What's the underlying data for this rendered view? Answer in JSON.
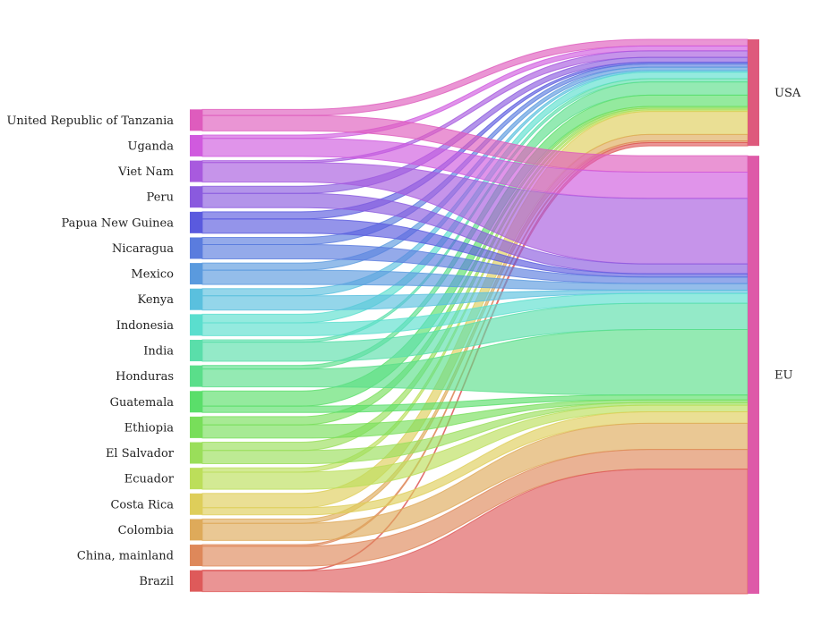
{
  "chart_data": {
    "type": "sankey",
    "title": "",
    "unit": "",
    "sources": [
      {
        "name": "United Republic of Tanzania",
        "color": "#de5cbd"
      },
      {
        "name": "Uganda",
        "color": "#d05ade"
      },
      {
        "name": "Viet Nam",
        "color": "#a85ade"
      },
      {
        "name": "Peru",
        "color": "#8a5ade"
      },
      {
        "name": "Papua New Guinea",
        "color": "#5a5ade"
      },
      {
        "name": "Nicaragua",
        "color": "#5a7cde"
      },
      {
        "name": "Mexico",
        "color": "#5a9ade"
      },
      {
        "name": "Kenya",
        "color": "#5ac0de"
      },
      {
        "name": "Indonesia",
        "color": "#5adece"
      },
      {
        "name": "India",
        "color": "#5adeaa"
      },
      {
        "name": "Honduras",
        "color": "#5ade8a"
      },
      {
        "name": "Guatemala",
        "color": "#5ade6a"
      },
      {
        "name": "Ethiopia",
        "color": "#78de5a"
      },
      {
        "name": "El Salvador",
        "color": "#9ade5a"
      },
      {
        "name": "Ecuador",
        "color": "#bcde5a"
      },
      {
        "name": "Costa Rica",
        "color": "#dece5a"
      },
      {
        "name": "Colombia",
        "color": "#deaa5a"
      },
      {
        "name": "China, mainland",
        "color": "#de885a"
      },
      {
        "name": "Brazil",
        "color": "#de5a5a"
      }
    ],
    "targets": [
      {
        "name": "USA",
        "color": "#de5a7c"
      },
      {
        "name": "EU",
        "color": "#de5aa8"
      }
    ],
    "flows": [
      {
        "source": "United Republic of Tanzania",
        "USA": 2.0,
        "EU": 5.0
      },
      {
        "source": "Uganda",
        "USA": 1.5,
        "EU": 8.0
      },
      {
        "source": "Viet Nam",
        "USA": 2.0,
        "EU": 20.0
      },
      {
        "source": "Peru",
        "USA": 1.5,
        "EU": 3.0
      },
      {
        "source": "Papua New Guinea",
        "USA": 0.5,
        "EU": 1.0
      },
      {
        "source": "Nicaragua",
        "USA": 1.0,
        "EU": 2.0
      },
      {
        "source": "Mexico",
        "USA": 1.0,
        "EU": 2.0
      },
      {
        "source": "Kenya",
        "USA": 0.5,
        "EU": 1.0
      },
      {
        "source": "Indonesia",
        "USA": 2.0,
        "EU": 3.0
      },
      {
        "source": "India",
        "USA": 1.0,
        "EU": 8.0
      },
      {
        "source": "Honduras",
        "USA": 4.0,
        "EU": 20.0
      },
      {
        "source": "Guatemala",
        "USA": 3.5,
        "EU": 1.5
      },
      {
        "source": "Ethiopia",
        "USA": 0.5,
        "EU": 0.8
      },
      {
        "source": "El Salvador",
        "USA": 0.5,
        "EU": 0.8
      },
      {
        "source": "Ecuador",
        "USA": 0.5,
        "EU": 2.0
      },
      {
        "source": "Costa Rica",
        "USA": 7.0,
        "EU": 3.5
      },
      {
        "source": "Colombia",
        "USA": 2.0,
        "EU": 8.0
      },
      {
        "source": "China, mainland",
        "USA": 0.5,
        "EU": 6.0
      },
      {
        "source": "Brazil",
        "USA": 1.0,
        "EU": 38.0
      }
    ]
  }
}
